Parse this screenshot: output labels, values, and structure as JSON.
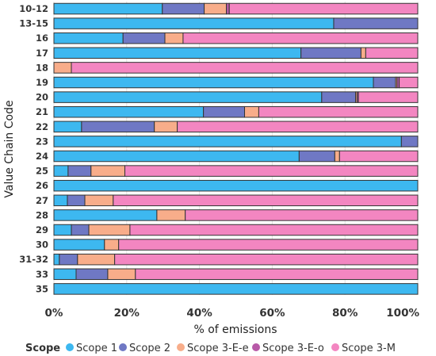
{
  "chart_data": {
    "type": "bar",
    "orientation": "horizontal",
    "stacked": "percent",
    "xlabel": "% of emissions",
    "ylabel": "Value Chain Code",
    "xlim": [
      0,
      100
    ],
    "x_ticks": [
      "0%",
      "20%",
      "40%",
      "60%",
      "80%",
      "100%"
    ],
    "categories": [
      "10-12",
      "13-15",
      "16",
      "17",
      "18",
      "19",
      "20",
      "21",
      "22",
      "23",
      "24",
      "25",
      "26",
      "27",
      "28",
      "29",
      "30",
      "31-32",
      "33",
      "35"
    ],
    "legend": {
      "title": "Scope",
      "position": "bottom-left"
    },
    "series": [
      {
        "name": "Scope 1",
        "color": "#3db8f0",
        "values": [
          29.8,
          76.9,
          19.0,
          67.9,
          0,
          87.8,
          73.6,
          41.1,
          7.6,
          95.5,
          67.4,
          3.9,
          100,
          3.7,
          28.3,
          4.8,
          13.9,
          1.5,
          6.1,
          100
        ]
      },
      {
        "name": "Scope 2",
        "color": "#6f78c4",
        "values": [
          11.5,
          23.1,
          11.5,
          16.5,
          0,
          6.1,
          9.3,
          11.3,
          20.0,
          4.5,
          9.8,
          6.3,
          0,
          4.8,
          0,
          4.8,
          0,
          5.0,
          8.7,
          0
        ]
      },
      {
        "name": "Scope 3-E-e",
        "color": "#f8ad8a",
        "values": [
          6.1,
          0,
          5.0,
          1.3,
          4.8,
          0.4,
          0.4,
          3.9,
          6.3,
          0,
          1.3,
          9.3,
          0,
          7.8,
          7.8,
          11.3,
          3.9,
          10.2,
          7.6,
          0
        ]
      },
      {
        "name": "Scope 3-E-o",
        "color": "#b85aa8",
        "values": [
          0.8,
          0,
          0,
          0,
          0,
          0.6,
          0.4,
          0,
          0,
          0,
          0,
          0,
          0,
          0,
          0,
          0,
          0,
          0,
          0,
          0
        ]
      },
      {
        "name": "Scope 3-M",
        "color": "#f386c1",
        "values": [
          51.8,
          0,
          64.5,
          14.3,
          95.2,
          5.1,
          16.3,
          43.7,
          66.1,
          0,
          21.5,
          80.5,
          0,
          83.7,
          63.9,
          79.1,
          82.2,
          83.3,
          77.6,
          0
        ]
      }
    ],
    "grid": true
  }
}
